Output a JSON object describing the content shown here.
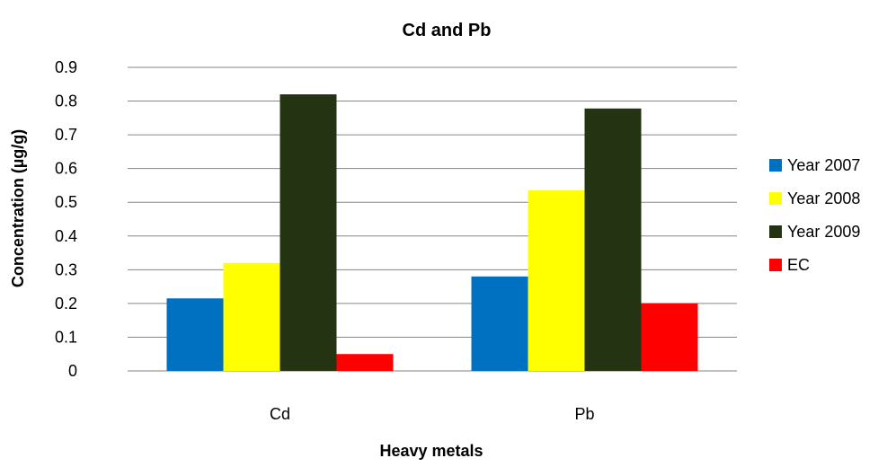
{
  "chart_data": {
    "type": "bar",
    "title": "Cd and Pb",
    "xlabel": "Heavy metals",
    "ylabel": "Concentration   (µg/g)",
    "categories": [
      "Cd",
      "Pb"
    ],
    "ylim": [
      0,
      0.9
    ],
    "yticks": [
      "0",
      "0.1",
      "0.2",
      "0.3",
      "0.4",
      "0.5",
      "0.6",
      "0.7",
      "0.8",
      "0.9"
    ],
    "grid": true,
    "legend_position": "right",
    "series": [
      {
        "name": "Year 2007",
        "color": "#0070C0",
        "values": [
          0.215,
          0.28
        ]
      },
      {
        "name": "Year 2008",
        "color": "#FFFF00",
        "values": [
          0.32,
          0.535
        ]
      },
      {
        "name": "Year 2009",
        "color": "#243312",
        "values": [
          0.82,
          0.778
        ]
      },
      {
        "name": "EC",
        "color": "#FF0000",
        "values": [
          0.05,
          0.2
        ]
      }
    ]
  }
}
